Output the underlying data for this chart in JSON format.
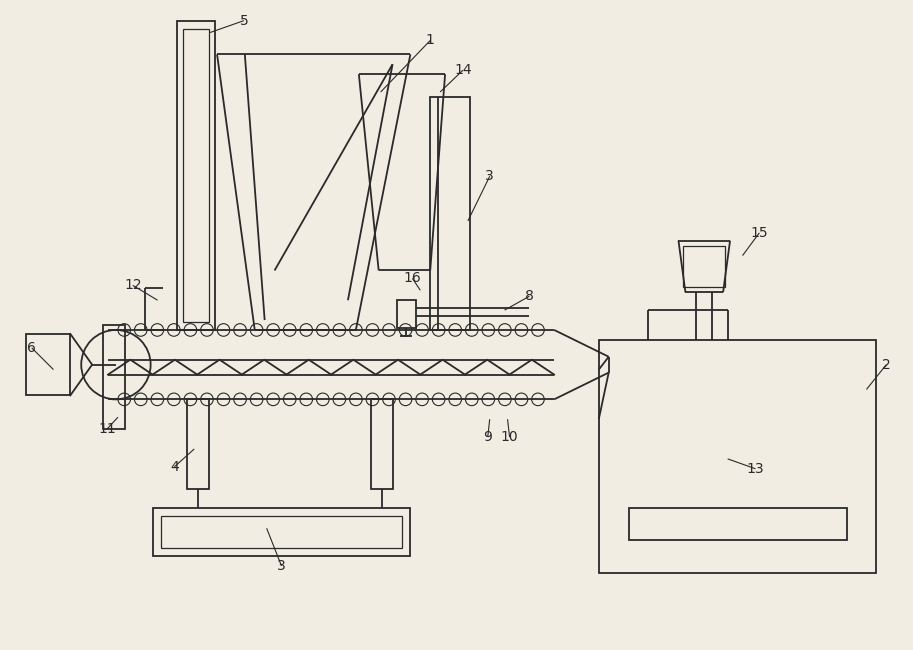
{
  "bg_color": "#f2ede3",
  "line_color": "#2a2a2a",
  "lw": 1.3,
  "fig_width": 9.13,
  "fig_height": 6.5,
  "dpi": 100
}
